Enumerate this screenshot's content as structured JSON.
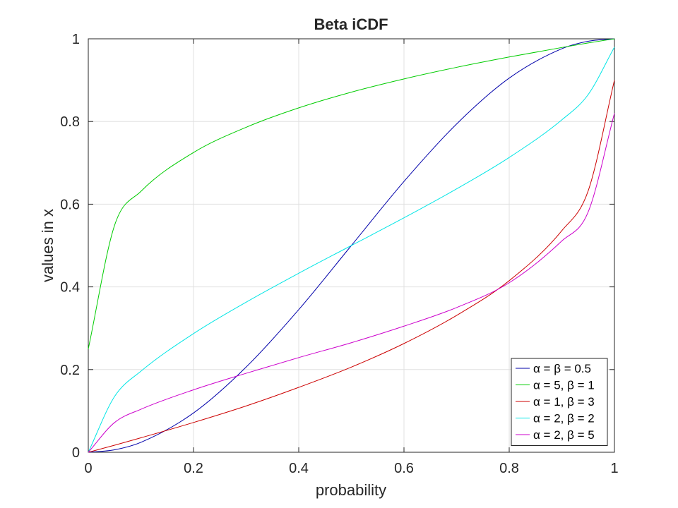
{
  "chart_data": {
    "type": "line",
    "title": "Beta iCDF",
    "xlabel": "probability",
    "ylabel": "values in x",
    "xlim": [
      0,
      1
    ],
    "ylim": [
      0,
      1
    ],
    "xticks": [
      0,
      0.2,
      0.4,
      0.6,
      0.8,
      1
    ],
    "yticks": [
      0,
      0.2,
      0.4,
      0.6,
      0.8,
      1
    ],
    "xtick_labels": [
      "0",
      "0.2",
      "0.4",
      "0.6",
      "0.8",
      "1"
    ],
    "ytick_labels": [
      "0",
      "0.2",
      "0.4",
      "0.6",
      "0.8",
      "1"
    ],
    "grid": true,
    "legend_position": "bottom-right",
    "x": [
      0,
      0.05,
      0.1,
      0.2,
      0.3,
      0.4,
      0.5,
      0.6,
      0.7,
      0.8,
      0.9,
      0.95,
      1
    ],
    "series": [
      {
        "name": "α = β = 0.5",
        "color": "#0000aa",
        "values": [
          0,
          0.006,
          0.024,
          0.095,
          0.206,
          0.345,
          0.5,
          0.655,
          0.794,
          0.905,
          0.976,
          0.994,
          1
        ]
      },
      {
        "name": "α = 5, β = 1",
        "color": "#00cc00",
        "values": [
          0.25,
          0.549,
          0.631,
          0.725,
          0.786,
          0.833,
          0.871,
          0.903,
          0.931,
          0.956,
          0.979,
          0.99,
          1
        ]
      },
      {
        "name": "α = 1, β = 3",
        "color": "#cc0000",
        "values": [
          0,
          0.017,
          0.035,
          0.072,
          0.112,
          0.157,
          0.206,
          0.263,
          0.331,
          0.415,
          0.536,
          0.632,
          0.9
        ]
      },
      {
        "name": "α = 2, β = 2",
        "color": "#00e5e5",
        "values": [
          0,
          0.135,
          0.196,
          0.287,
          0.363,
          0.433,
          0.5,
          0.567,
          0.637,
          0.713,
          0.804,
          0.865,
          0.98
        ]
      },
      {
        "name": "α = 2, β = 5",
        "color": "#cc00cc",
        "values": [
          0,
          0.072,
          0.104,
          0.151,
          0.191,
          0.229,
          0.265,
          0.305,
          0.35,
          0.41,
          0.511,
          0.581,
          0.82
        ]
      }
    ]
  }
}
